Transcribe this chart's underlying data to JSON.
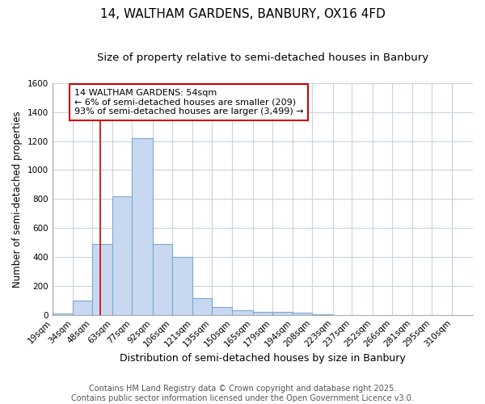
{
  "title1": "14, WALTHAM GARDENS, BANBURY, OX16 4FD",
  "title2": "Size of property relative to semi-detached houses in Banbury",
  "xlabel": "Distribution of semi-detached houses by size in Banbury",
  "ylabel": "Number of semi-detached properties",
  "bin_labels": [
    "19sqm",
    "34sqm",
    "48sqm",
    "63sqm",
    "77sqm",
    "92sqm",
    "106sqm",
    "121sqm",
    "135sqm",
    "150sqm",
    "165sqm",
    "179sqm",
    "194sqm",
    "208sqm",
    "223sqm",
    "237sqm",
    "252sqm",
    "266sqm",
    "281sqm",
    "295sqm",
    "310sqm"
  ],
  "bin_edges": [
    19,
    34,
    48,
    63,
    77,
    92,
    106,
    121,
    135,
    150,
    165,
    179,
    194,
    208,
    223,
    237,
    252,
    266,
    281,
    295,
    310,
    325
  ],
  "bar_heights": [
    10,
    100,
    490,
    820,
    1220,
    490,
    400,
    115,
    55,
    30,
    20,
    20,
    15,
    2,
    0,
    0,
    0,
    0,
    0,
    0,
    0
  ],
  "bar_color": "#c8d8f0",
  "bar_edge_color": "#7aaad0",
  "vline_x": 54,
  "vline_color": "#cc0000",
  "annotation_text": "14 WALTHAM GARDENS: 54sqm\n← 6% of semi-detached houses are smaller (209)\n93% of semi-detached houses are larger (3,499) →",
  "annotation_box_color": "#ffffff",
  "annotation_box_edge_color": "#cc0000",
  "ylim": [
    0,
    1600
  ],
  "yticks": [
    0,
    200,
    400,
    600,
    800,
    1000,
    1200,
    1400,
    1600
  ],
  "footer_text": "Contains HM Land Registry data © Crown copyright and database right 2025.\nContains public sector information licensed under the Open Government Licence v3.0.",
  "bg_color": "#ffffff",
  "plot_bg_color": "#ffffff",
  "grid_color": "#c8d4e0",
  "title1_fontsize": 11,
  "title2_fontsize": 9.5,
  "xlabel_fontsize": 9,
  "ylabel_fontsize": 8.5,
  "tick_fontsize": 7.5,
  "footer_fontsize": 7,
  "annotation_fontsize": 8
}
